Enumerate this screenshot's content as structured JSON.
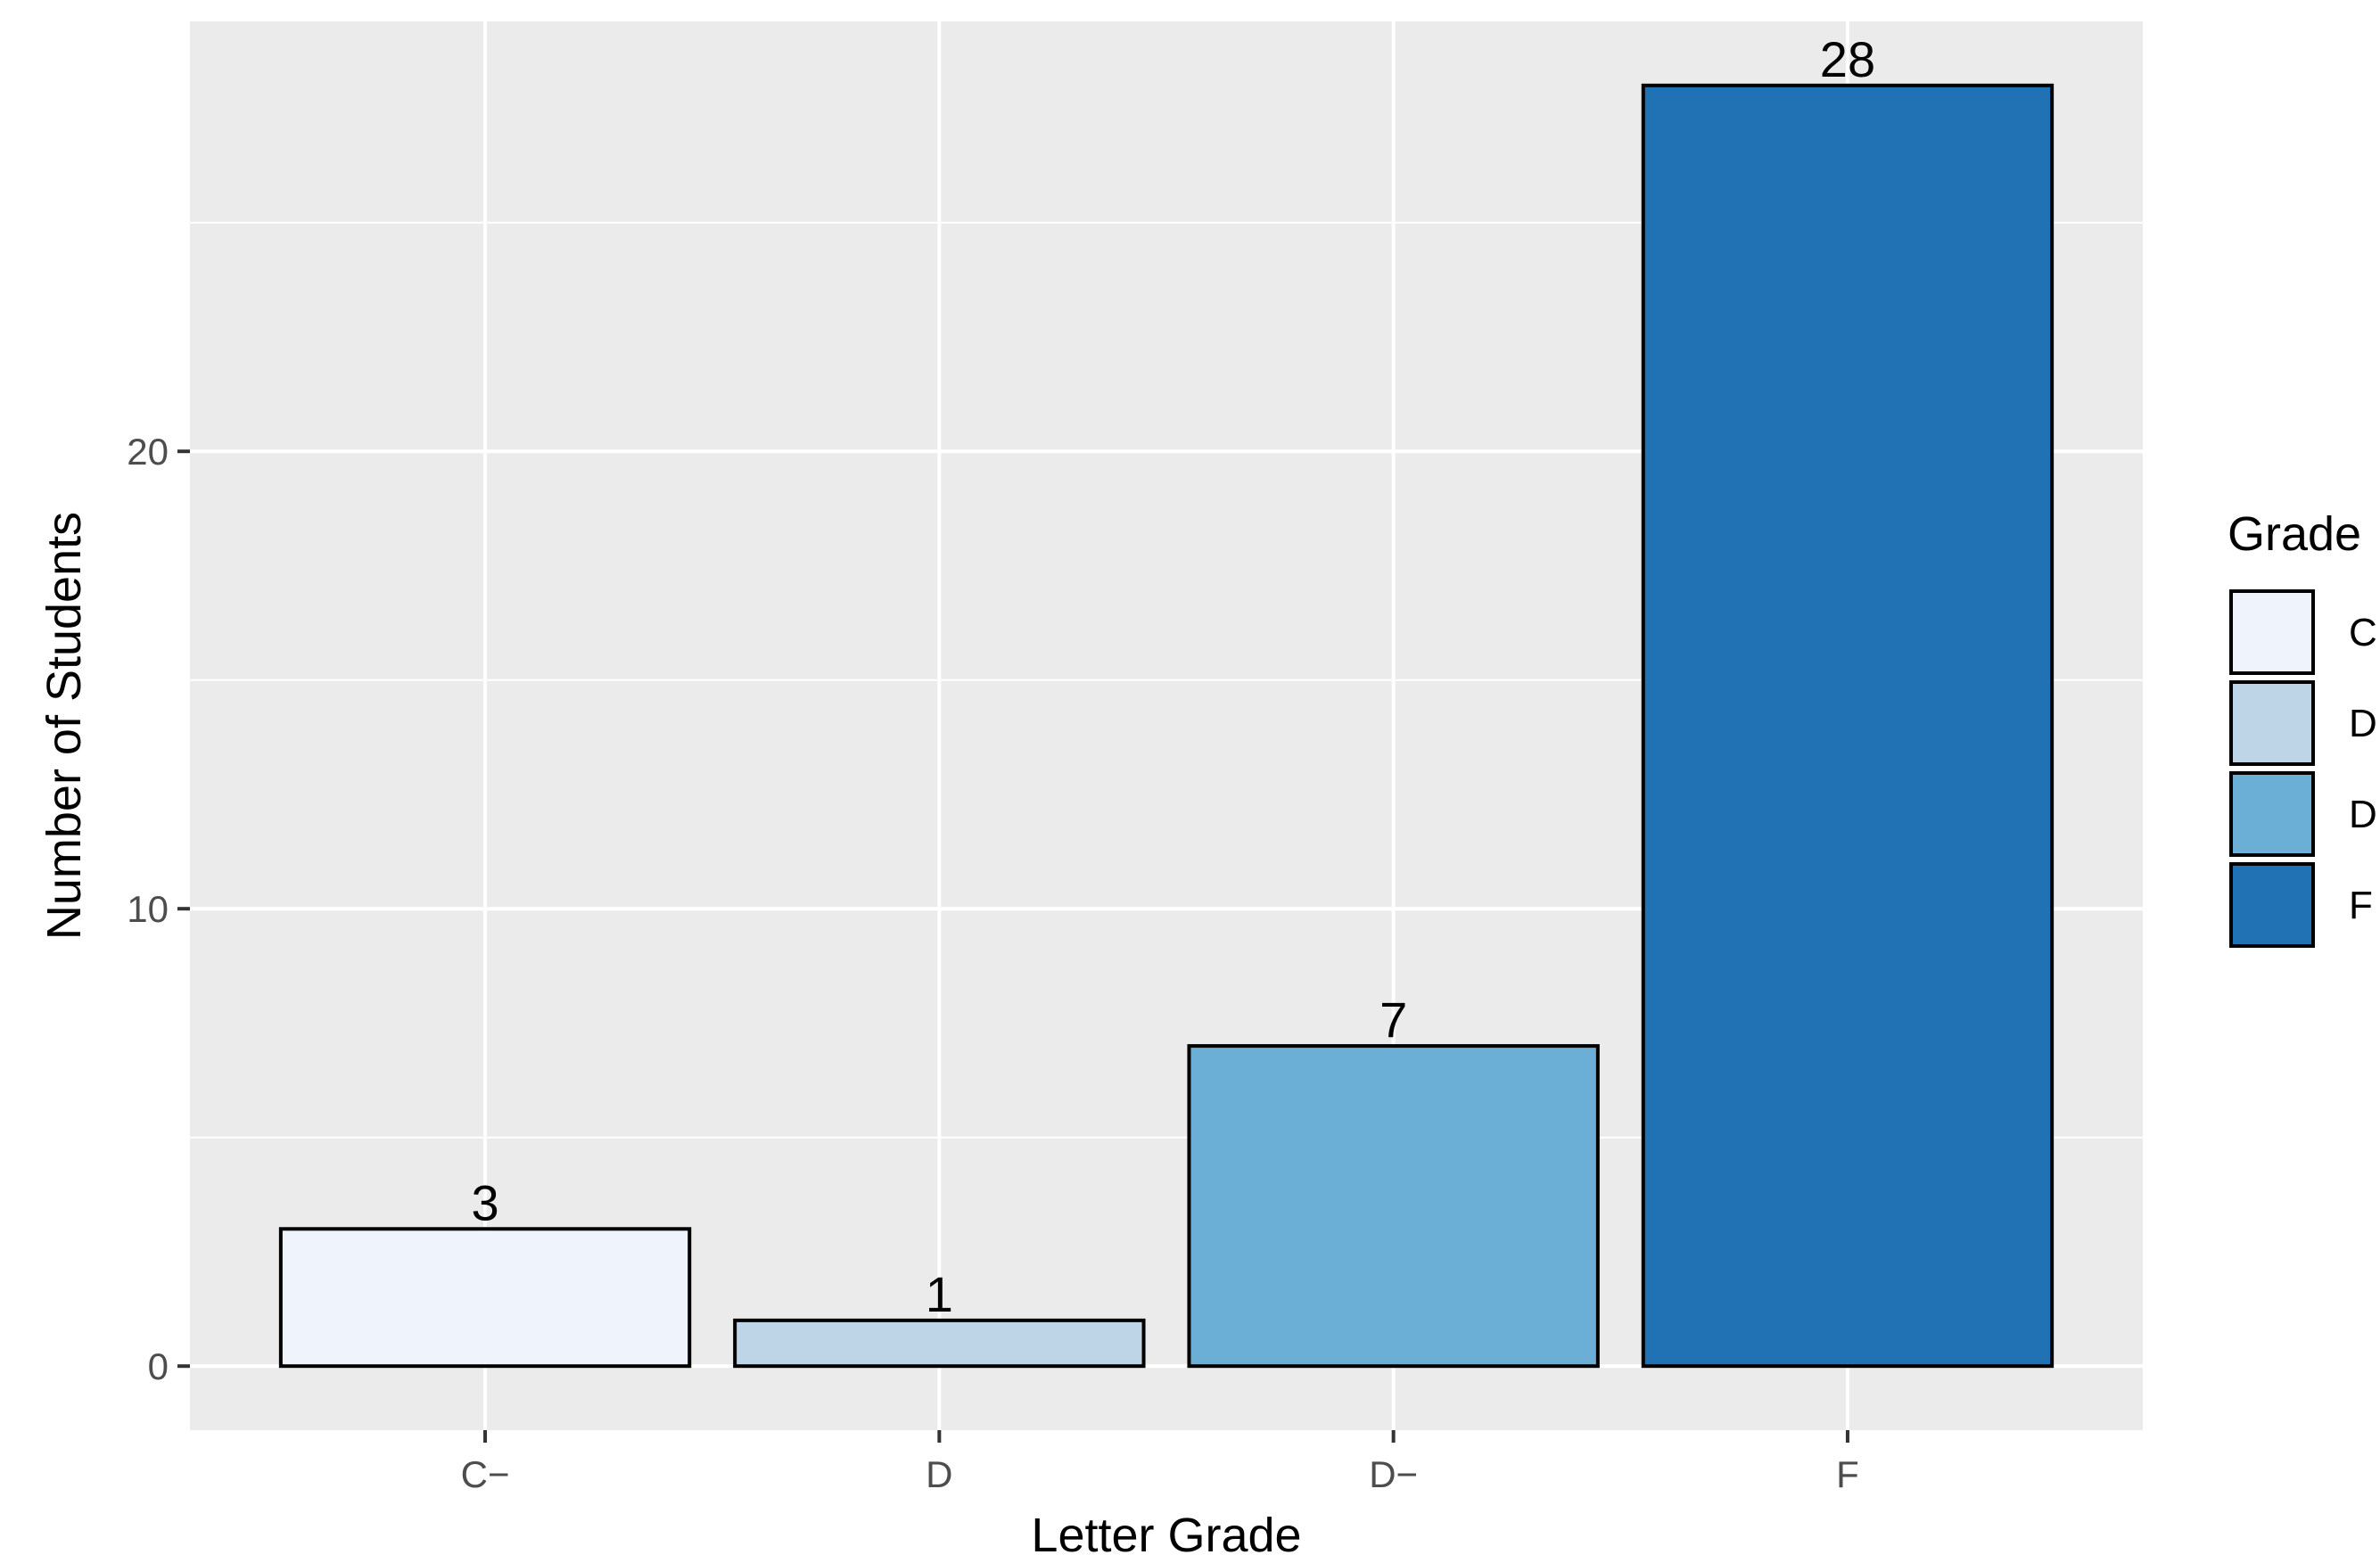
{
  "chart_data": {
    "type": "bar",
    "categories": [
      "C−",
      "D",
      "D−",
      "F"
    ],
    "values": [
      3,
      1,
      7,
      28
    ],
    "data_labels": [
      "3",
      "1",
      "7",
      "28"
    ],
    "xlabel": "Letter Grade",
    "ylabel": "Number of Students",
    "ylim": [
      -1.4,
      29.4
    ],
    "yticks": [
      0,
      10,
      20
    ],
    "ytick_labels": [
      "0",
      "10",
      "20"
    ],
    "grid": true,
    "legend": {
      "title": "Grade",
      "placement": "right",
      "entries": [
        "C",
        "D",
        "D",
        "F"
      ]
    },
    "colors": [
      "#eef3fc",
      "#bdd5e6",
      "#6baed6",
      "#2171b5"
    ],
    "bar_outline": "#000000",
    "panel_background": "#ebebeb",
    "gridline_color": "#ffffff"
  }
}
